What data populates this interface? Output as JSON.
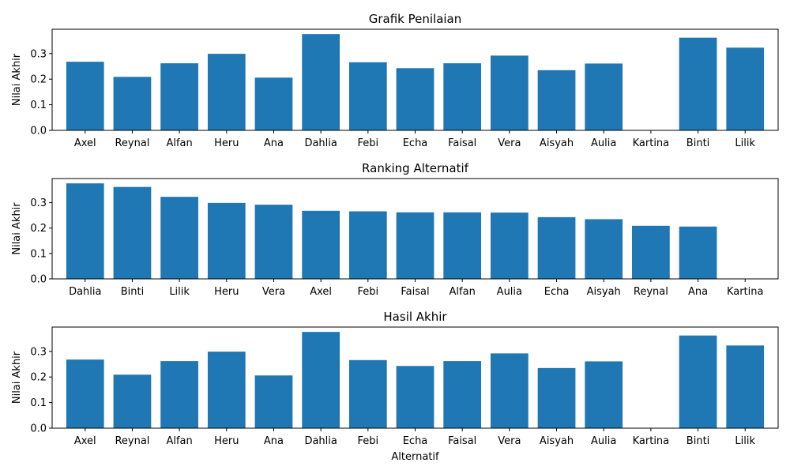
{
  "figure": {
    "bar_color": "#1f77b4",
    "axes_color": "#000000",
    "background": "#ffffff"
  },
  "chart_data": [
    {
      "type": "bar",
      "title": "Grafik Penilaian",
      "xlabel": "",
      "ylabel": "Nilai Akhir",
      "ylim": [
        0,
        0.395
      ],
      "yticks": [
        0.0,
        0.1,
        0.2,
        0.3
      ],
      "ytick_labels": [
        "0.0",
        "0.1",
        "0.2",
        "0.3"
      ],
      "grid": false,
      "categories": [
        "Axel",
        "Reynal",
        "Alfan",
        "Heru",
        "Ana",
        "Dahlia",
        "Febi",
        "Echa",
        "Faisal",
        "Vera",
        "Aisyah",
        "Aulia",
        "Kartina",
        "Binti",
        "Lilik"
      ],
      "values": [
        0.268,
        0.209,
        0.262,
        0.299,
        0.206,
        0.376,
        0.266,
        0.243,
        0.262,
        0.292,
        0.235,
        0.261,
        0.0,
        0.362,
        0.323
      ]
    },
    {
      "type": "bar",
      "title": "Ranking Alternatif",
      "xlabel": "",
      "ylabel": "Nilai Akhir",
      "ylim": [
        0,
        0.395
      ],
      "yticks": [
        0.0,
        0.1,
        0.2,
        0.3
      ],
      "ytick_labels": [
        "0.0",
        "0.1",
        "0.2",
        "0.3"
      ],
      "grid": false,
      "categories": [
        "Dahlia",
        "Binti",
        "Lilik",
        "Heru",
        "Vera",
        "Axel",
        "Febi",
        "Faisal",
        "Alfan",
        "Aulia",
        "Echa",
        "Aisyah",
        "Reynal",
        "Ana",
        "Kartina"
      ],
      "values": [
        0.376,
        0.362,
        0.323,
        0.299,
        0.292,
        0.268,
        0.266,
        0.262,
        0.262,
        0.261,
        0.243,
        0.235,
        0.209,
        0.206,
        0.0
      ]
    },
    {
      "type": "bar",
      "title": "Hasil Akhir",
      "xlabel": "Alternatif",
      "ylabel": "Nilai Akhir",
      "ylim": [
        0,
        0.395
      ],
      "yticks": [
        0.0,
        0.1,
        0.2,
        0.3
      ],
      "ytick_labels": [
        "0.0",
        "0.1",
        "0.2",
        "0.3"
      ],
      "grid": false,
      "categories": [
        "Axel",
        "Reynal",
        "Alfan",
        "Heru",
        "Ana",
        "Dahlia",
        "Febi",
        "Echa",
        "Faisal",
        "Vera",
        "Aisyah",
        "Aulia",
        "Kartina",
        "Binti",
        "Lilik"
      ],
      "values": [
        0.268,
        0.209,
        0.262,
        0.299,
        0.206,
        0.376,
        0.266,
        0.243,
        0.262,
        0.292,
        0.235,
        0.261,
        0.0,
        0.362,
        0.323
      ]
    }
  ]
}
